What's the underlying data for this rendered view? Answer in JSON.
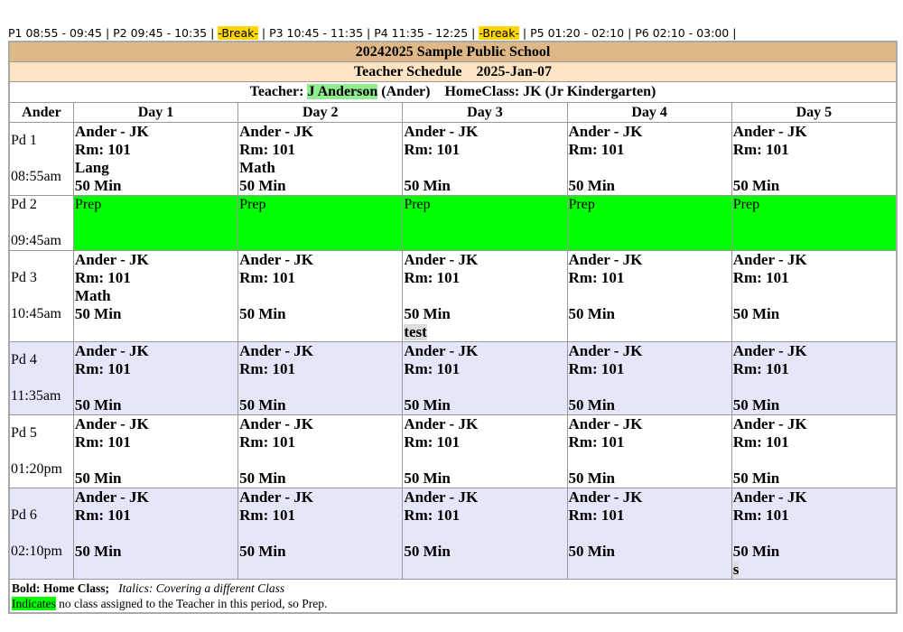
{
  "periods_bar": [
    "P1 08:55 - 09:45",
    "P2 09:45 - 10:35",
    "-Break-",
    "P3 10:45 - 11:35",
    "P4 11:35 - 12:25",
    "-Break-",
    "P5 01:20 - 02:10",
    "P6 02:10 - 03:00"
  ],
  "school_title": "20242025 Sample Public School",
  "schedule_title": "Teacher Schedule",
  "schedule_date": "2025-Jan-07",
  "teacher": {
    "label": "Teacher:",
    "name": "J Anderson",
    "code": "(Ander)",
    "homeclass_label": "HomeClass:",
    "homeclass": "JK (Jr Kindergarten)"
  },
  "columns": [
    "Ander",
    "Day 1",
    "Day 2",
    "Day 3",
    "Day 4",
    "Day 5"
  ],
  "rows": [
    {
      "period": "Pd 1",
      "time": "08:55am",
      "style": "",
      "cells": [
        {
          "lines": [
            "Ander - JK",
            "Rm: 101",
            "Lang",
            "50 Min"
          ]
        },
        {
          "lines": [
            "Ander - JK",
            "Rm: 101",
            "Math",
            "50 Min"
          ]
        },
        {
          "lines": [
            "Ander - JK",
            "Rm: 101",
            "",
            "50 Min"
          ]
        },
        {
          "lines": [
            "Ander - JK",
            "Rm: 101",
            "",
            "50 Min"
          ]
        },
        {
          "lines": [
            "Ander - JK",
            "Rm: 101",
            "",
            "50 Min"
          ]
        }
      ]
    },
    {
      "period": "Pd 2",
      "time": "09:45am",
      "style": "prep",
      "cells": [
        {
          "lines": [
            "Prep"
          ]
        },
        {
          "lines": [
            "Prep"
          ]
        },
        {
          "lines": [
            "Prep"
          ]
        },
        {
          "lines": [
            "Prep"
          ]
        },
        {
          "lines": [
            "Prep"
          ]
        }
      ]
    },
    {
      "period": "Pd 3",
      "time": "10:45am",
      "style": "",
      "cells": [
        {
          "lines": [
            "Ander - JK",
            "Rm: 101",
            "Math",
            "50 Min"
          ]
        },
        {
          "lines": [
            "Ander - JK",
            "Rm: 101",
            "",
            "50 Min"
          ]
        },
        {
          "lines": [
            "Ander - JK",
            "Rm: 101",
            "",
            "50 Min"
          ],
          "note": "test"
        },
        {
          "lines": [
            "Ander - JK",
            "Rm: 101",
            "",
            "50 Min"
          ]
        },
        {
          "lines": [
            "Ander - JK",
            "Rm: 101",
            "",
            "50 Min"
          ]
        }
      ]
    },
    {
      "period": "Pd 4",
      "time": "11:35am",
      "style": "lav",
      "cells": [
        {
          "lines": [
            "Ander - JK",
            "Rm: 101",
            "",
            "50 Min"
          ]
        },
        {
          "lines": [
            "Ander - JK",
            "Rm: 101",
            "",
            "50 Min"
          ]
        },
        {
          "lines": [
            "Ander - JK",
            "Rm: 101",
            "",
            "50 Min"
          ]
        },
        {
          "lines": [
            "Ander - JK",
            "Rm: 101",
            "",
            "50 Min"
          ]
        },
        {
          "lines": [
            "Ander - JK",
            "Rm: 101",
            "",
            "50 Min"
          ]
        }
      ]
    },
    {
      "period": "Pd 5",
      "time": "01:20pm",
      "style": "",
      "cells": [
        {
          "lines": [
            "Ander - JK",
            "Rm: 101",
            "",
            "50 Min"
          ]
        },
        {
          "lines": [
            "Ander - JK",
            "Rm: 101",
            "",
            "50 Min"
          ]
        },
        {
          "lines": [
            "Ander - JK",
            "Rm: 101",
            "",
            "50 Min"
          ]
        },
        {
          "lines": [
            "Ander - JK",
            "Rm: 101",
            "",
            "50 Min"
          ]
        },
        {
          "lines": [
            "Ander - JK",
            "Rm: 101",
            "",
            "50 Min"
          ]
        }
      ]
    },
    {
      "period": "Pd 6",
      "time": "02:10pm",
      "style": "lav",
      "cells": [
        {
          "lines": [
            "Ander - JK",
            "Rm: 101",
            "",
            "50 Min"
          ]
        },
        {
          "lines": [
            "Ander - JK",
            "Rm: 101",
            "",
            "50 Min"
          ]
        },
        {
          "lines": [
            "Ander - JK",
            "Rm: 101",
            "",
            "50 Min"
          ]
        },
        {
          "lines": [
            "Ander - JK",
            "Rm: 101",
            "",
            "50 Min"
          ]
        },
        {
          "lines": [
            "Ander - JK",
            "Rm: 101",
            "",
            "50 Min"
          ],
          "note": "s"
        }
      ]
    }
  ],
  "legend": {
    "bold": "Bold: Home Class;",
    "italic": "Italics: Covering a different Class",
    "green_word": "Indicates",
    "green_text": " no class assigned to the Teacher in this period, so Prep."
  },
  "colors": {
    "title_bg": "#deb887",
    "subtitle_bg": "#ffe4c4",
    "prep": "#00ff00",
    "alt_row": "#e6e6fa",
    "break": "#ffd700",
    "teacher_highlight": "#90ee90"
  }
}
